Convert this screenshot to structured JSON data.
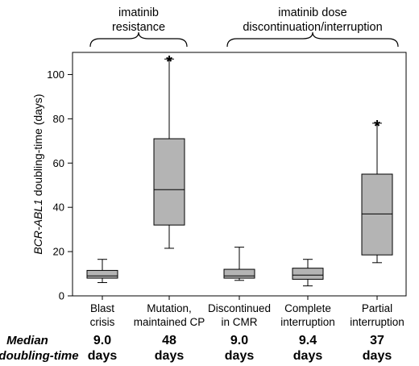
{
  "groups": [
    {
      "line1": "imatinib",
      "line2": "resistance"
    },
    {
      "line1": "imatinib dose",
      "line2": "discontinuation/interruption"
    }
  ],
  "median_label": {
    "line1": "Median",
    "line2": "doubling-time"
  },
  "chart_data": {
    "type": "box",
    "title": "",
    "xlabel": "",
    "ylabel_italic": "BCR-ABL1",
    "ylabel_rest": " doubling-time (days)",
    "ylim": [
      0,
      110
    ],
    "yticks": [
      0,
      20,
      40,
      60,
      80,
      100
    ],
    "categories": [
      {
        "line1": "Blast",
        "line2": "crisis"
      },
      {
        "line1": "Mutation,",
        "line2": "maintained CP"
      },
      {
        "line1": "Discontinued",
        "line2": "in CMR"
      },
      {
        "line1": "Complete",
        "line2": "interruption"
      },
      {
        "line1": "Partial",
        "line2": "interruption"
      }
    ],
    "boxes": [
      {
        "min": 6,
        "q1": 8,
        "median": 9.0,
        "q3": 11.5,
        "max": 16.5,
        "outlier_marker": ""
      },
      {
        "min": 21.5,
        "q1": 32,
        "median": 48,
        "q3": 71,
        "max": 107,
        "outlier_marker": "*"
      },
      {
        "min": 7,
        "q1": 8,
        "median": 9.0,
        "q3": 12,
        "max": 22,
        "outlier_marker": ""
      },
      {
        "min": 4.5,
        "q1": 7.5,
        "median": 9.4,
        "q3": 12.5,
        "max": 16.5,
        "outlier_marker": ""
      },
      {
        "min": 15,
        "q1": 18.5,
        "median": 37,
        "q3": 55,
        "max": 78,
        "outlier_marker": "*"
      }
    ],
    "median_values": [
      {
        "value": "9.0",
        "unit": "days"
      },
      {
        "value": "48",
        "unit": "days"
      },
      {
        "value": "9.0",
        "unit": "days"
      },
      {
        "value": "9.4",
        "unit": "days"
      },
      {
        "value": "37",
        "unit": "days"
      }
    ],
    "colors": {
      "box_fill": "#b4b4b4",
      "stroke": "#000000"
    }
  }
}
